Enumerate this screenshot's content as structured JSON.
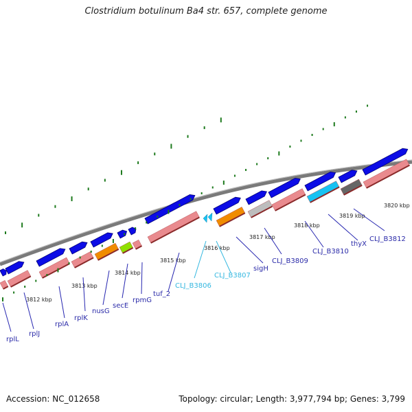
{
  "title": "Clostridium botulinum Ba4 str. 657, complete genome",
  "footer": {
    "accession": "Accession: NC_012658",
    "stats": "Topology: circular; Length: 3,977,794 bp; Genes: 3,799"
  },
  "colors": {
    "backbone": "#7a7a7a",
    "forward_gene": "#0c0ce6",
    "reverse_gene": "#e98a8e",
    "orange_gene": "#f08c00",
    "green_gene": "#8fe000",
    "cyan_gene": "#17c2f2",
    "grey_gene": "#bdbdbd",
    "darkgrey_gene": "#666666",
    "ticks": "#1d7a1d",
    "label_line_dark": "#2626b0",
    "label_line_cyan": "#33b7e0"
  },
  "kbp_labels": [
    "3812 kbp",
    "3813 kbp",
    "3814 kbp",
    "3815 kbp",
    "3816 kbp",
    "3817 kbp",
    "3818 kbp",
    "3819 kbp",
    "3820 kbp"
  ],
  "genes": [
    {
      "name": "rplL",
      "color": "dark"
    },
    {
      "name": "rplJ",
      "color": "dark"
    },
    {
      "name": "rplA",
      "color": "dark"
    },
    {
      "name": "rplK",
      "color": "dark"
    },
    {
      "name": "nusG",
      "color": "dark"
    },
    {
      "name": "secE",
      "color": "dark"
    },
    {
      "name": "rpmG",
      "color": "dark"
    },
    {
      "name": "tuf_2",
      "color": "dark"
    },
    {
      "name": "CLJ_B3806",
      "color": "cyan"
    },
    {
      "name": "CLJ_B3807",
      "color": "cyan"
    },
    {
      "name": "sigH",
      "color": "dark"
    },
    {
      "name": "CLJ_B3809",
      "color": "dark"
    },
    {
      "name": "CLJ_B3810",
      "color": "dark"
    },
    {
      "name": "thyX",
      "color": "dark"
    },
    {
      "name": "CLJ_B3812",
      "color": "dark"
    }
  ]
}
